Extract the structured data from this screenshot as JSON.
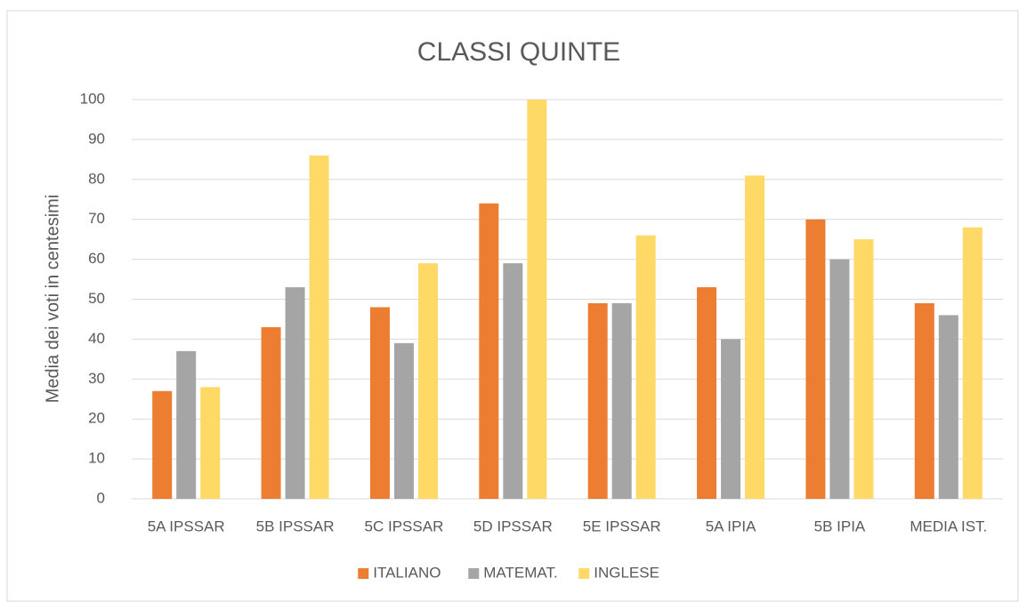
{
  "chart_data": {
    "type": "bar",
    "title": "CLASSI QUINTE",
    "y_label": "Media dei voti in centesimi",
    "categories": [
      "5A IPSSAR",
      "5B IPSSAR",
      "5C IPSSAR",
      "5D IPSSAR",
      "5E IPSSAR",
      "5A IPIA",
      "5B IPIA",
      "MEDIA IST."
    ],
    "series": [
      {
        "name": "ITALIANO",
        "color": "#ed7d31",
        "values": [
          27,
          43,
          48,
          74,
          49,
          53,
          70,
          49
        ]
      },
      {
        "name": "MATEMAT.",
        "color": "#a5a5a5",
        "values": [
          37,
          53,
          39,
          59,
          49,
          40,
          60,
          46
        ]
      },
      {
        "name": "INGLESE",
        "color": "#ffd966",
        "values": [
          28,
          86,
          59,
          100,
          66,
          81,
          65,
          68
        ]
      }
    ],
    "ylim": [
      0,
      100
    ],
    "yticks": [
      0,
      10,
      20,
      30,
      40,
      50,
      60,
      70,
      80,
      90,
      100
    ],
    "grid": true,
    "legend": "bottom"
  }
}
